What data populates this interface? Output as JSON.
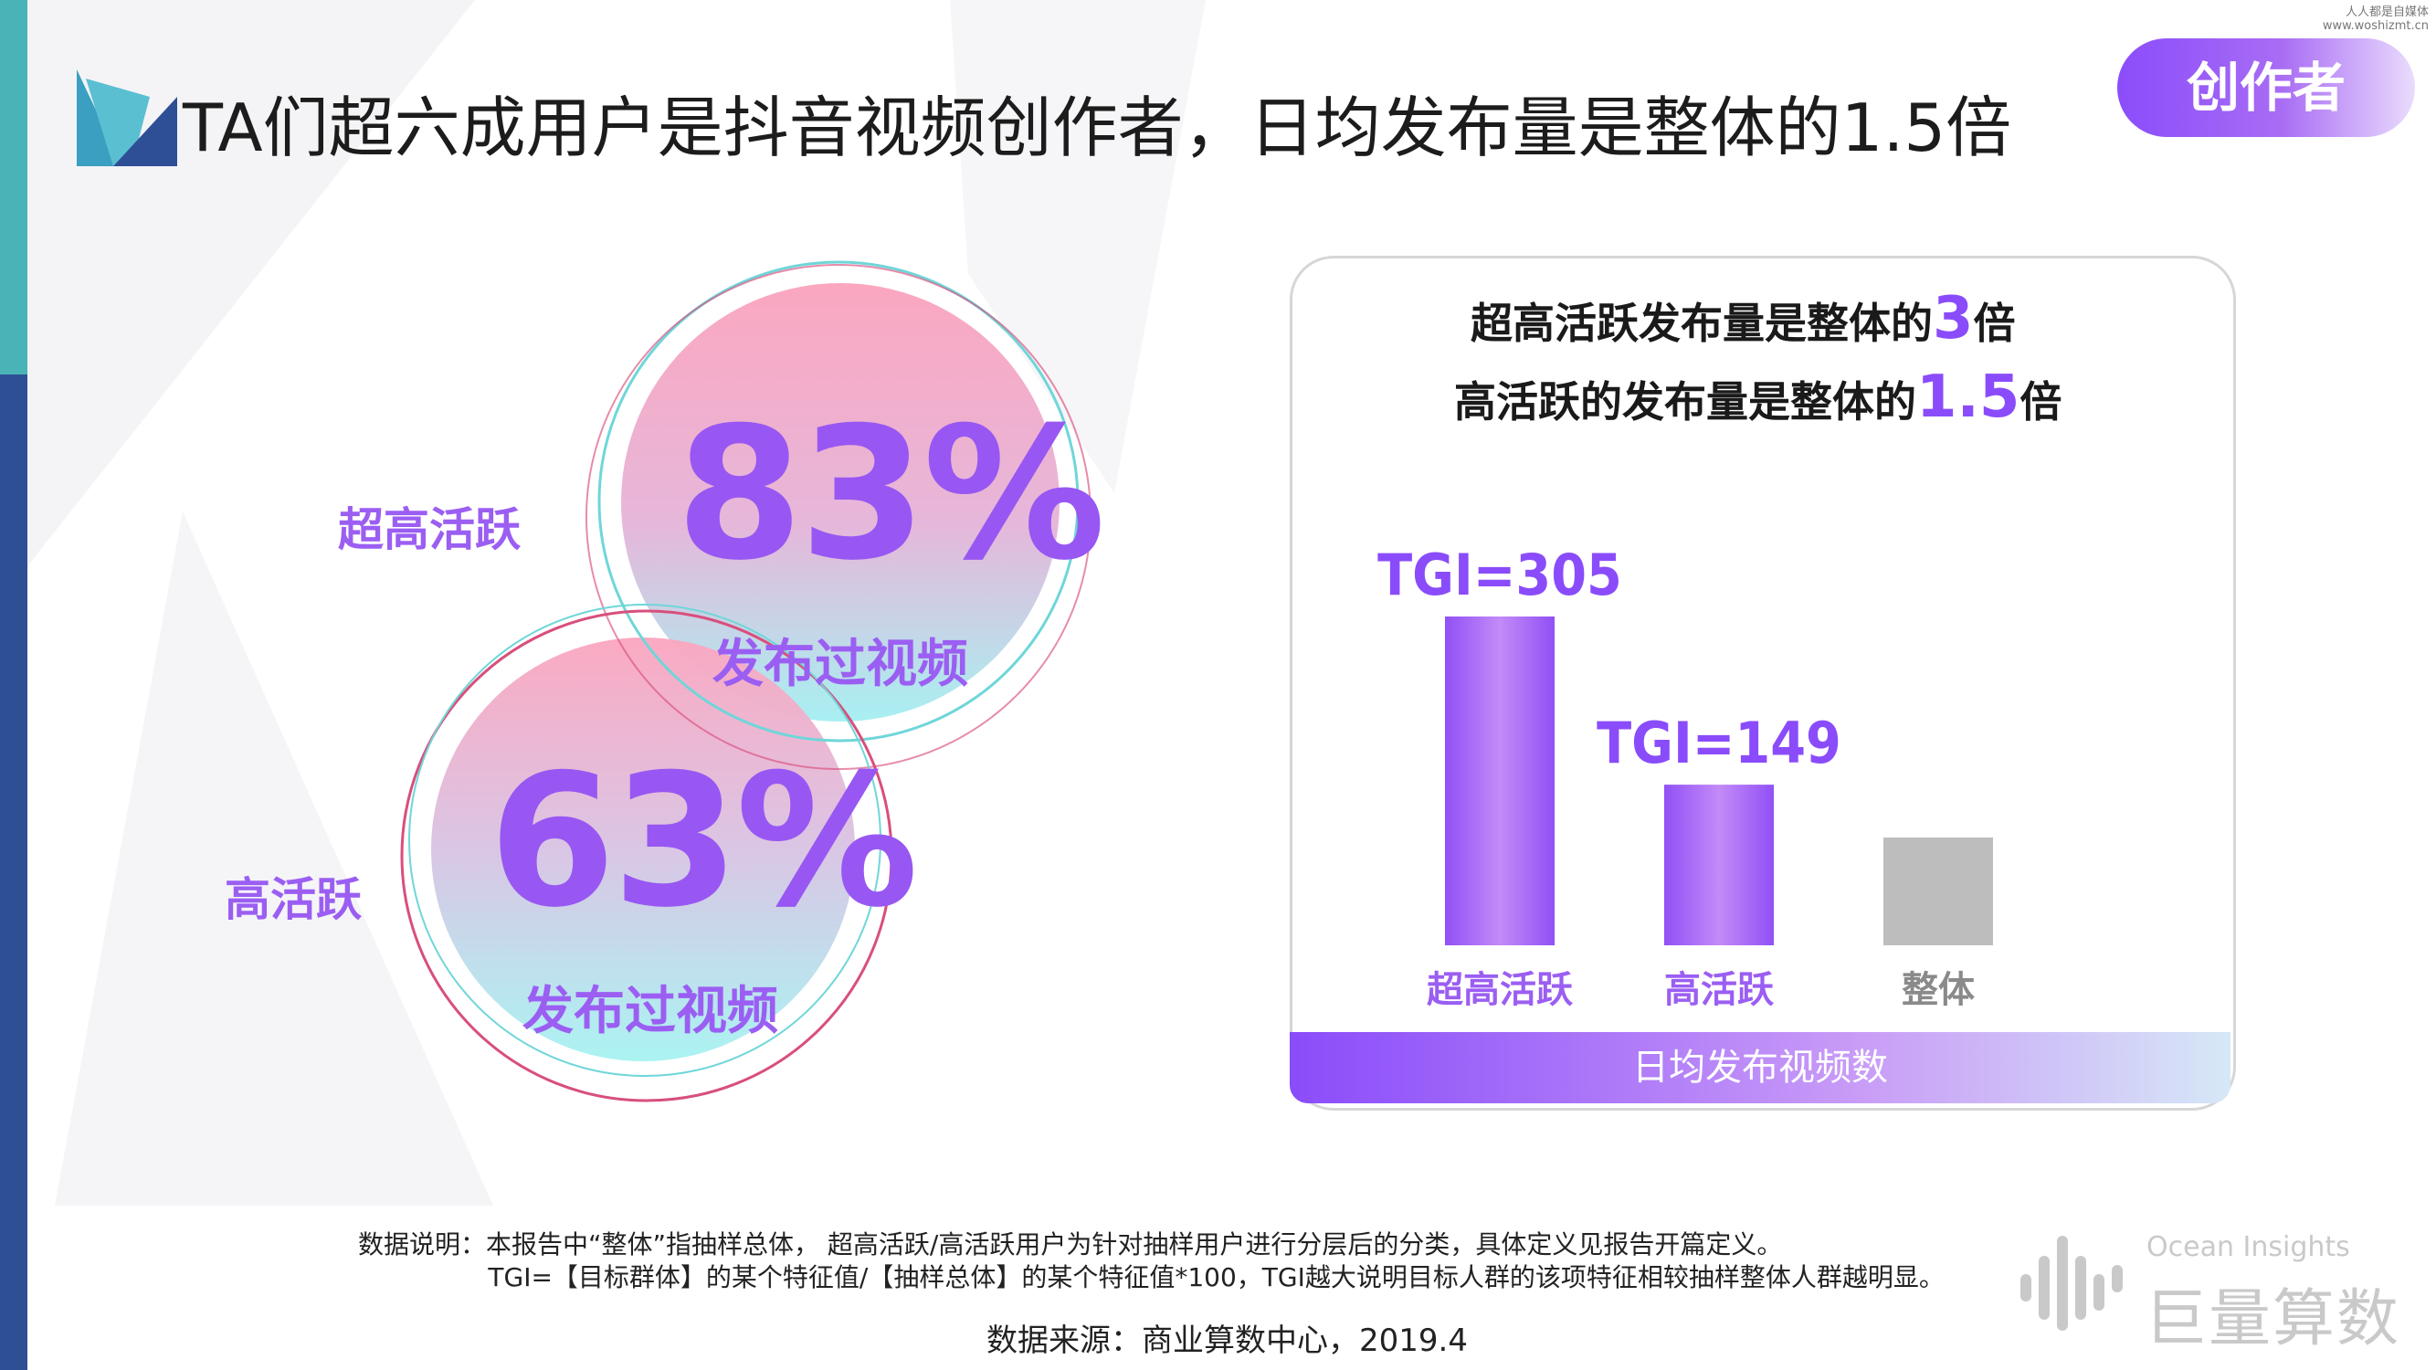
{
  "header": {
    "title": "TA们超六成用户是抖音视频创作者，日均发布量是整体的1.5倍",
    "topic_badge": "创作者",
    "source_logo_line1": "人人都是自媒体",
    "source_logo_line2": "www.woshizmt.cn"
  },
  "venn": {
    "top": {
      "segment": "超高活跃",
      "percent": "83%",
      "label": "发布过视频"
    },
    "bottom": {
      "segment": "高活跃",
      "percent": "63%",
      "label": "发布过视频"
    }
  },
  "chart_headline": {
    "line1_prefix": "超高活跃发布量是整体的",
    "line1_value": "3",
    "line1_suffix": "倍",
    "line2_prefix": "高活跃的发布量是整体的",
    "line2_value": "1.5",
    "line2_suffix": "倍"
  },
  "chart_data": {
    "type": "bar",
    "categories": [
      "超高活跃",
      "高活跃",
      "整体"
    ],
    "values": [
      305,
      149,
      100
    ],
    "data_labels": [
      "TGI=305",
      "TGI=149",
      ""
    ],
    "xlabel": "日均发布视频数",
    "colors": [
      "#9b5ef5",
      "#9b5ef5",
      "#bdbdbd"
    ]
  },
  "footer": {
    "note_line1": "数据说明：本报告中“整体”指抽样总体， 超高活跃/高活跃用户为针对抽样用户进行分层后的分类，具体定义见报告开篇定义。",
    "note_line2": "                TGI=【目标群体】的某个特征值/【抽样总体】的某个特征值*100，TGI越大说明目标人群的该项特征相较抽样整体人群越明显。",
    "source": "数据来源：商业算数中心，2019.4"
  },
  "brand": {
    "en": "Ocean Insights",
    "cn": "巨量算数"
  }
}
